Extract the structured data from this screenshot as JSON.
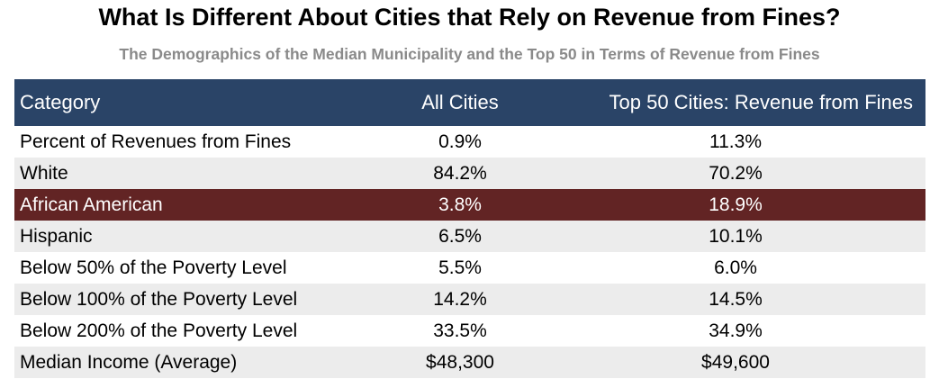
{
  "chart_data": {
    "type": "table",
    "title": "What Is Different About Cities that Rely on Revenue from Fines?",
    "subtitle": "The Demographics of the Median Municipality and the Top 50 in Terms of Revenue from Fines",
    "columns": [
      "Category",
      "All Cities",
      "Top 50 Cities: Revenue from Fines"
    ],
    "rows": [
      {
        "category": "Percent of Revenues from Fines",
        "all_cities": "0.9%",
        "top50": "11.3%"
      },
      {
        "category": "White",
        "all_cities": "84.2%",
        "top50": "70.2%"
      },
      {
        "category": "African American",
        "all_cities": "3.8%",
        "top50": "18.9%"
      },
      {
        "category": "Hispanic",
        "all_cities": "6.5%",
        "top50": "10.1%"
      },
      {
        "category": "Below 50% of the Poverty Level",
        "all_cities": "5.5%",
        "top50": "6.0%"
      },
      {
        "category": "Below 100% of the Poverty Level",
        "all_cities": "14.2%",
        "top50": "14.5%"
      },
      {
        "category": "Below 200% of the Poverty Level",
        "all_cities": "33.5%",
        "top50": "34.9%"
      },
      {
        "category": "Median Income (Average)",
        "all_cities": "$48,300",
        "top50": "$49,600"
      }
    ],
    "highlight_row": "African American",
    "colors": {
      "header_bg": "#2a4467",
      "highlight_bg": "#622424",
      "alt_row_bg": "#ececec",
      "subtitle_text": "#8a8a8a"
    }
  }
}
